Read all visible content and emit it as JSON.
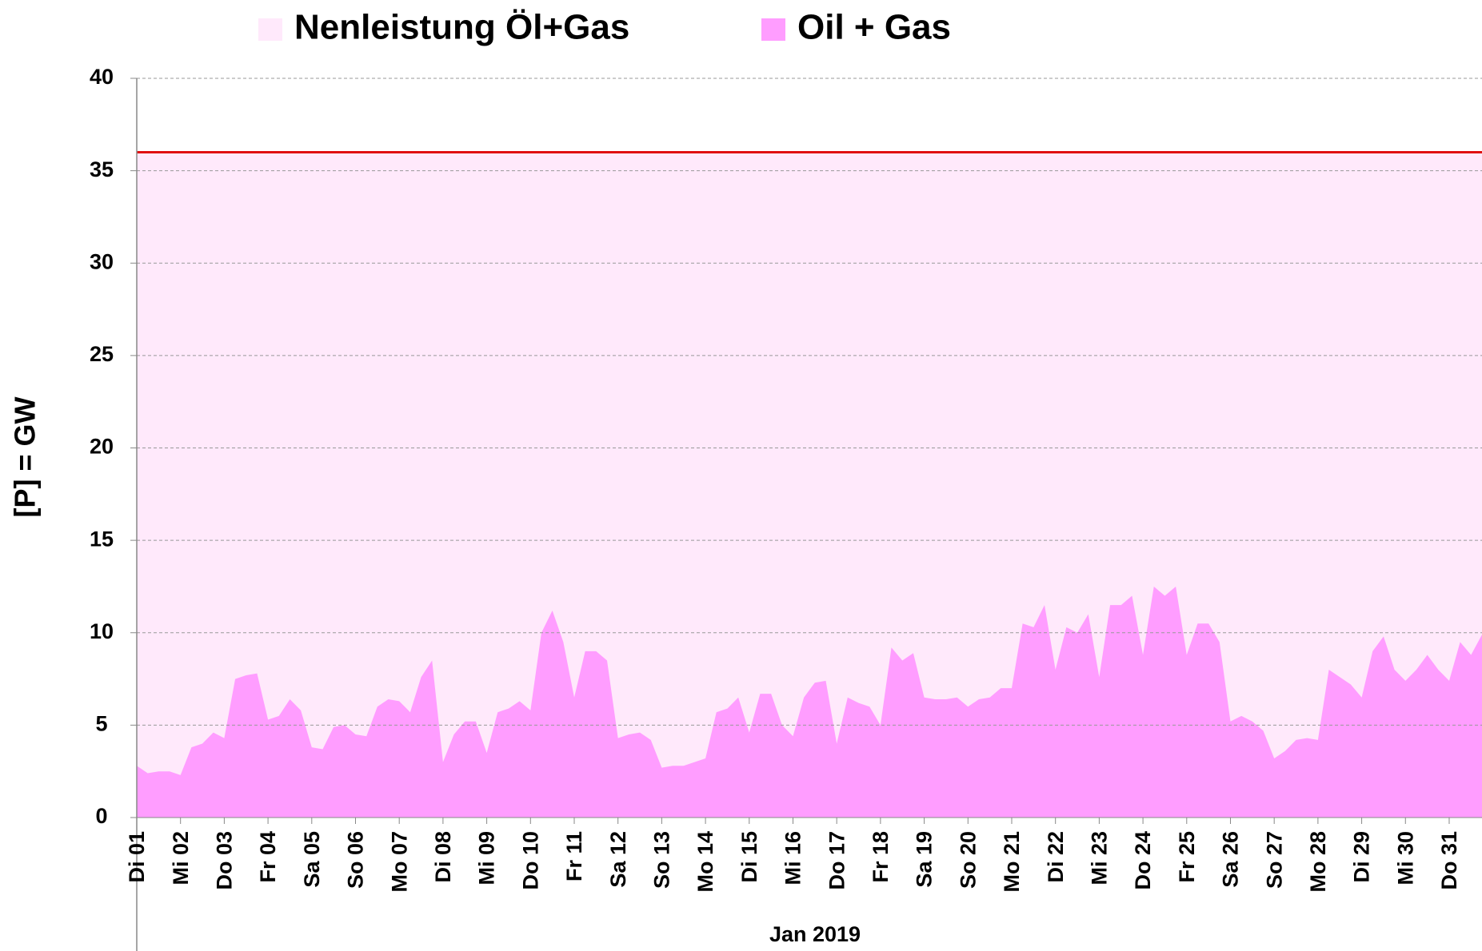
{
  "chart_data": {
    "type": "area",
    "x_label": "Jan 2019",
    "y_label": "[P]  = GW",
    "categories": [
      "Di 01",
      null,
      null,
      null,
      "Mi 02",
      null,
      null,
      null,
      "Do 03",
      null,
      null,
      null,
      "Fr 04",
      null,
      null,
      null,
      "Sa 05",
      null,
      null,
      null,
      "So 06",
      null,
      null,
      null,
      "Mo 07",
      null,
      null,
      null,
      "Di 08",
      null,
      null,
      null,
      "Mi 09",
      null,
      null,
      null,
      "Do 10",
      null,
      null,
      null,
      "Fr 11",
      null,
      null,
      null,
      "Sa 12",
      null,
      null,
      null,
      "So 13",
      null,
      null,
      null,
      "Mo 14",
      null,
      null,
      null,
      "Di 15",
      null,
      null,
      null,
      "Mi 16",
      null,
      null,
      null,
      "Do 17",
      null,
      null,
      null,
      "Fr 18",
      null,
      null,
      null,
      "Sa 19",
      null,
      null,
      null,
      "So 20",
      null,
      null,
      null,
      "Mo 21",
      null,
      null,
      null,
      "Di 22",
      null,
      null,
      null,
      "Mi 23",
      null,
      null,
      null,
      "Do 24",
      null,
      null,
      null,
      "Fr 25",
      null,
      null,
      null,
      "Sa 26",
      null,
      null,
      null,
      "So 27",
      null,
      null,
      null,
      "Mo 28",
      null,
      null,
      null,
      "Di 29",
      null,
      null,
      null,
      "Mi 30",
      null,
      null,
      null,
      "Do 31",
      null,
      null,
      null
    ],
    "series": [
      {
        "name": "Nenleistung Öl+Gas",
        "color": "#ffe9fb",
        "line_color": "#e01010",
        "values": [
          36,
          36,
          36,
          36,
          36,
          36,
          36,
          36,
          36,
          36,
          36,
          36,
          36,
          36,
          36,
          36,
          36,
          36,
          36,
          36,
          36,
          36,
          36,
          36,
          36,
          36,
          36,
          36,
          36,
          36,
          36,
          36,
          36,
          36,
          36,
          36,
          36,
          36,
          36,
          36,
          36,
          36,
          36,
          36,
          36,
          36,
          36,
          36,
          36,
          36,
          36,
          36,
          36,
          36,
          36,
          36,
          36,
          36,
          36,
          36,
          36,
          36,
          36,
          36,
          36,
          36,
          36,
          36,
          36,
          36,
          36,
          36,
          36,
          36,
          36,
          36,
          36,
          36,
          36,
          36,
          36,
          36,
          36,
          36,
          36,
          36,
          36,
          36,
          36,
          36,
          36,
          36,
          36,
          36,
          36,
          36,
          36,
          36,
          36,
          36,
          36,
          36,
          36,
          36,
          36,
          36,
          36,
          36,
          36,
          36,
          36,
          36,
          36,
          36,
          36,
          36,
          36,
          36,
          36,
          36,
          36,
          36,
          36,
          36
        ]
      },
      {
        "name": "Oil + Gas",
        "color": "#ff9dff",
        "values": [
          2.8,
          2.4,
          2.5,
          2.5,
          2.3,
          3.8,
          4.0,
          4.6,
          4.3,
          7.5,
          7.7,
          7.8,
          5.3,
          5.5,
          6.4,
          5.8,
          3.8,
          3.7,
          4.9,
          5.0,
          4.5,
          4.4,
          6.0,
          6.4,
          6.3,
          5.7,
          7.6,
          8.5,
          3.0,
          4.5,
          5.2,
          5.2,
          3.5,
          5.7,
          5.9,
          6.3,
          5.8,
          10.0,
          11.2,
          9.5,
          6.5,
          9.0,
          9.0,
          8.5,
          4.3,
          4.5,
          4.6,
          4.2,
          2.7,
          2.8,
          2.8,
          3.0,
          3.2,
          5.7,
          5.9,
          6.5,
          4.6,
          6.7,
          6.7,
          5.0,
          4.4,
          6.5,
          7.3,
          7.4,
          4.0,
          6.5,
          6.2,
          6.0,
          5.0,
          9.2,
          8.5,
          8.9,
          6.5,
          6.4,
          6.4,
          6.5,
          6.0,
          6.4,
          6.5,
          7.0,
          7.0,
          10.5,
          10.3,
          11.5,
          8.0,
          10.3,
          10.0,
          11.0,
          7.6,
          11.5,
          11.5,
          12.0,
          8.8,
          12.5,
          12.0,
          12.5,
          8.8,
          10.5,
          10.5,
          9.5,
          5.2,
          5.5,
          5.2,
          4.7,
          3.2,
          3.6,
          4.2,
          4.3,
          4.2,
          8.0,
          7.6,
          7.2,
          6.5,
          9.0,
          9.8,
          8.0,
          7.4,
          8.0,
          8.8,
          8.0,
          7.4,
          9.5,
          8.8,
          9.9
        ]
      }
    ],
    "ylim": [
      0,
      40
    ],
    "yticks": [
      0,
      5,
      10,
      15,
      20,
      25,
      30,
      35,
      40
    ],
    "grid": true
  }
}
